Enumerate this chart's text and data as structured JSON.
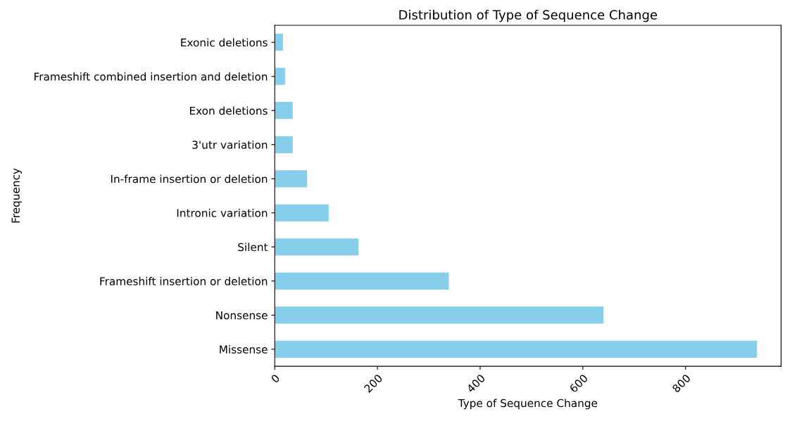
{
  "chart_data": {
    "type": "bar",
    "orientation": "horizontal",
    "title": "Distribution of Type of Sequence Change",
    "xlabel": "Type of Sequence Change",
    "ylabel": "Frequency",
    "categories": [
      "Exonic deletions",
      "Frameshift combined insertion and deletion",
      "Exon deletions",
      "3'utr variation",
      "In-frame insertion or deletion",
      "Intronic variation",
      "Silent",
      "Frameshift insertion or deletion",
      "Nonsense",
      "Missense"
    ],
    "values": [
      16,
      20,
      35,
      35,
      63,
      105,
      163,
      339,
      640,
      939
    ],
    "color": "#87ceeb",
    "xlim": [
      0,
      986
    ],
    "xticks": [
      0,
      200,
      400,
      600,
      800
    ],
    "grid": false,
    "legend": false
  }
}
